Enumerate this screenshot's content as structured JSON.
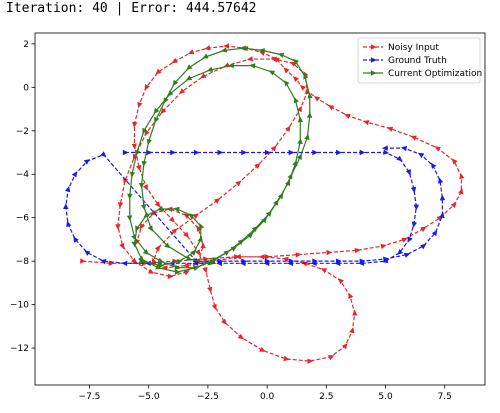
{
  "status": {
    "iteration_label": "Iteration:",
    "iteration": "40",
    "separator": "|",
    "error_label": "Error:",
    "error": "444.57642"
  },
  "chart_data": {
    "type": "line",
    "title": "",
    "xlabel": "",
    "ylabel": "",
    "xlim": [
      -9.8,
      9.2
    ],
    "ylim": [
      -13.7,
      2.5
    ],
    "xticks": [
      -7.5,
      -5.0,
      -2.5,
      0.0,
      2.5,
      5.0,
      7.5
    ],
    "xtick_labels": [
      "−7.5",
      "−5.0",
      "−2.5",
      "0.0",
      "2.5",
      "5.0",
      "7.5"
    ],
    "yticks": [
      2,
      0,
      -2,
      -4,
      -6,
      -8,
      -10,
      -12
    ],
    "ytick_labels": [
      "2",
      "0",
      "−2",
      "−4",
      "−6",
      "−8",
      "−10",
      "−12"
    ],
    "grid": false,
    "legend_position": "top-right",
    "series": [
      {
        "name": "Noisy Input",
        "color": "#e8262a",
        "marker": "triangle-right",
        "linestyle": "dashed",
        "points": [
          [
            -7.8,
            -8.0
          ],
          [
            -6.6,
            -8.1
          ],
          [
            -5.2,
            -8.1
          ],
          [
            -3.9,
            -8.0
          ],
          [
            -2.6,
            -7.9
          ],
          [
            -1.3,
            -7.8
          ],
          [
            0.0,
            -7.8
          ],
          [
            1.3,
            -7.7
          ],
          [
            2.6,
            -7.6
          ],
          [
            3.8,
            -7.5
          ],
          [
            4.9,
            -7.3
          ],
          [
            5.8,
            -7.0
          ],
          [
            6.6,
            -6.5
          ],
          [
            7.3,
            -6.0
          ],
          [
            7.9,
            -5.4
          ],
          [
            8.2,
            -4.8
          ],
          [
            8.2,
            -4.1
          ],
          [
            7.9,
            -3.4
          ],
          [
            7.2,
            -2.8
          ],
          [
            6.2,
            -2.3
          ],
          [
            5.2,
            -1.9
          ],
          [
            4.2,
            -1.6
          ],
          [
            3.4,
            -1.3
          ],
          [
            2.7,
            -0.9
          ],
          [
            2.1,
            -0.5
          ],
          [
            1.5,
            0.0
          ],
          [
            1.2,
            0.4
          ],
          [
            0.8,
            0.8
          ],
          [
            0.4,
            1.3
          ],
          [
            -0.2,
            1.6
          ],
          [
            -0.9,
            1.8
          ],
          [
            -1.7,
            1.9
          ],
          [
            -2.5,
            1.8
          ],
          [
            -3.2,
            1.6
          ],
          [
            -3.9,
            1.2
          ],
          [
            -4.6,
            0.7
          ],
          [
            -5.1,
            0.0
          ],
          [
            -5.4,
            -0.8
          ],
          [
            -5.6,
            -1.7
          ],
          [
            -5.6,
            -2.7
          ],
          [
            -5.4,
            -3.7
          ],
          [
            -5.1,
            -4.6
          ],
          [
            -4.6,
            -5.4
          ],
          [
            -4.0,
            -6.1
          ],
          [
            -3.4,
            -6.8
          ],
          [
            -2.9,
            -7.6
          ],
          [
            -2.6,
            -8.4
          ],
          [
            -2.4,
            -9.3
          ],
          [
            -2.2,
            -10.1
          ],
          [
            -1.8,
            -10.8
          ],
          [
            -1.1,
            -11.5
          ],
          [
            -0.2,
            -12.1
          ],
          [
            0.8,
            -12.5
          ],
          [
            1.8,
            -12.6
          ],
          [
            2.7,
            -12.4
          ],
          [
            3.3,
            -11.9
          ],
          [
            3.6,
            -11.2
          ],
          [
            3.7,
            -10.4
          ],
          [
            3.5,
            -9.6
          ],
          [
            3.1,
            -8.9
          ],
          [
            2.4,
            -8.4
          ],
          [
            1.6,
            -8.1
          ],
          [
            0.8,
            -7.9
          ],
          [
            -0.2,
            -7.8
          ],
          [
            -1.2,
            -7.8
          ],
          [
            -2.3,
            -8.0
          ],
          [
            -3.4,
            -8.2
          ],
          [
            -4.3,
            -8.3
          ],
          [
            -4.8,
            -8.0
          ],
          [
            -4.6,
            -7.4
          ],
          [
            -3.9,
            -6.6
          ],
          [
            -3.0,
            -5.9
          ],
          [
            -2.1,
            -5.2
          ],
          [
            -1.2,
            -4.4
          ],
          [
            -0.4,
            -3.6
          ],
          [
            0.3,
            -2.8
          ],
          [
            0.9,
            -1.9
          ],
          [
            1.4,
            -1.0
          ],
          [
            1.7,
            -0.2
          ],
          [
            1.6,
            0.6
          ],
          [
            1.1,
            1.1
          ],
          [
            0.3,
            1.3
          ],
          [
            -0.7,
            1.3
          ],
          [
            -1.7,
            1.0
          ],
          [
            -2.7,
            0.5
          ],
          [
            -3.6,
            -0.2
          ],
          [
            -4.4,
            -1.1
          ],
          [
            -5.1,
            -2.1
          ],
          [
            -5.6,
            -3.2
          ],
          [
            -6.0,
            -4.3
          ],
          [
            -6.2,
            -5.4
          ],
          [
            -6.3,
            -6.4
          ],
          [
            -6.1,
            -7.3
          ],
          [
            -5.6,
            -8.0
          ],
          [
            -4.9,
            -8.5
          ],
          [
            -4.1,
            -8.7
          ],
          [
            -3.4,
            -8.5
          ],
          [
            -2.9,
            -8.0
          ],
          [
            -2.7,
            -7.3
          ],
          [
            -2.9,
            -6.5
          ],
          [
            -3.4,
            -5.9
          ],
          [
            -4.1,
            -5.6
          ],
          [
            -4.8,
            -5.8
          ],
          [
            -5.3,
            -6.4
          ],
          [
            -5.5,
            -7.1
          ]
        ]
      },
      {
        "name": "Ground Truth",
        "color": "#1a1aee",
        "marker": "triangle-right",
        "linestyle": "dashed",
        "points": [
          [
            -6.0,
            -3.0
          ],
          [
            -5.0,
            -3.0
          ],
          [
            -4.0,
            -3.0
          ],
          [
            -3.0,
            -3.0
          ],
          [
            -2.0,
            -3.0
          ],
          [
            -1.0,
            -3.0
          ],
          [
            0.0,
            -3.0
          ],
          [
            1.0,
            -3.0
          ],
          [
            2.0,
            -3.0
          ],
          [
            3.0,
            -3.0
          ],
          [
            4.0,
            -3.0
          ],
          [
            5.0,
            -3.0
          ],
          [
            5.6,
            -3.3
          ],
          [
            6.0,
            -3.9
          ],
          [
            6.2,
            -4.7
          ],
          [
            6.3,
            -5.5
          ],
          [
            6.2,
            -6.3
          ],
          [
            6.0,
            -7.0
          ],
          [
            5.6,
            -7.6
          ],
          [
            5.0,
            -8.0
          ],
          [
            4.0,
            -8.1
          ],
          [
            3.0,
            -8.1
          ],
          [
            2.0,
            -8.1
          ],
          [
            1.0,
            -8.1
          ],
          [
            0.0,
            -8.1
          ],
          [
            -1.0,
            -8.1
          ],
          [
            -2.0,
            -8.1
          ],
          [
            -3.0,
            -8.1
          ],
          [
            -4.0,
            -8.1
          ],
          [
            -5.0,
            -8.1
          ],
          [
            -6.0,
            -8.1
          ],
          [
            -6.9,
            -8.0
          ],
          [
            -7.6,
            -7.6
          ],
          [
            -8.1,
            -7.0
          ],
          [
            -8.4,
            -6.3
          ],
          [
            -8.5,
            -5.5
          ],
          [
            -8.4,
            -4.7
          ],
          [
            -8.1,
            -4.0
          ],
          [
            -7.6,
            -3.4
          ],
          [
            -6.9,
            -3.1
          ],
          [
            -3.0,
            -8.0
          ],
          [
            -2.0,
            -8.0
          ],
          [
            -1.0,
            -8.0
          ],
          [
            0.0,
            -8.0
          ],
          [
            1.0,
            -8.0
          ],
          [
            2.0,
            -8.0
          ],
          [
            3.0,
            -8.0
          ],
          [
            4.0,
            -8.0
          ],
          [
            5.0,
            -7.9
          ],
          [
            5.9,
            -7.7
          ],
          [
            6.6,
            -7.3
          ],
          [
            7.1,
            -6.7
          ],
          [
            7.4,
            -5.9
          ],
          [
            7.4,
            -5.1
          ],
          [
            7.3,
            -4.3
          ],
          [
            7.0,
            -3.6
          ],
          [
            6.5,
            -3.1
          ],
          [
            5.8,
            -2.8
          ],
          [
            5.0,
            -2.8
          ]
        ]
      },
      {
        "name": "Current Optimization",
        "color": "#2e7d1e",
        "marker": "triangle-right",
        "linestyle": "solid",
        "points": [
          [
            -5.3,
            -8.0
          ],
          [
            -4.5,
            -8.2
          ],
          [
            -3.7,
            -8.0
          ],
          [
            -3.1,
            -7.6
          ],
          [
            -2.8,
            -7.0
          ],
          [
            -2.8,
            -6.4
          ],
          [
            -3.2,
            -5.9
          ],
          [
            -3.8,
            -5.6
          ],
          [
            -4.5,
            -5.6
          ],
          [
            -5.1,
            -5.9
          ],
          [
            -5.5,
            -6.5
          ],
          [
            -5.6,
            -7.2
          ],
          [
            -5.3,
            -7.9
          ],
          [
            -4.6,
            -8.3
          ],
          [
            -3.8,
            -8.5
          ],
          [
            -3.0,
            -8.3
          ],
          [
            -2.2,
            -7.9
          ],
          [
            -1.4,
            -7.4
          ],
          [
            -0.7,
            -6.8
          ],
          [
            -0.1,
            -6.1
          ],
          [
            0.4,
            -5.3
          ],
          [
            0.9,
            -4.4
          ],
          [
            1.2,
            -3.5
          ],
          [
            1.4,
            -2.5
          ],
          [
            1.4,
            -1.5
          ],
          [
            1.2,
            -0.6
          ],
          [
            0.8,
            0.2
          ],
          [
            0.2,
            0.7
          ],
          [
            -0.6,
            1.0
          ],
          [
            -1.5,
            1.0
          ],
          [
            -2.4,
            0.8
          ],
          [
            -3.3,
            0.4
          ],
          [
            -4.1,
            -0.3
          ],
          [
            -4.7,
            -1.1
          ],
          [
            -5.2,
            -2.0
          ],
          [
            -5.5,
            -3.0
          ],
          [
            -5.7,
            -4.0
          ],
          [
            -5.8,
            -5.0
          ],
          [
            -5.8,
            -6.0
          ],
          [
            -5.6,
            -6.9
          ],
          [
            -5.1,
            -7.6
          ],
          [
            -4.5,
            -8.0
          ],
          [
            -3.8,
            -8.3
          ],
          [
            -3.0,
            -8.3
          ],
          [
            -2.3,
            -8.0
          ],
          [
            -1.7,
            -7.6
          ],
          [
            -1.1,
            -7.1
          ],
          [
            -0.5,
            -6.5
          ],
          [
            0.1,
            -5.8
          ],
          [
            0.6,
            -5.0
          ],
          [
            1.0,
            -4.1
          ],
          [
            1.4,
            -3.2
          ],
          [
            1.7,
            -2.3
          ],
          [
            1.8,
            -1.3
          ],
          [
            1.8,
            -0.4
          ],
          [
            1.6,
            0.5
          ],
          [
            1.2,
            1.2
          ],
          [
            0.6,
            1.5
          ],
          [
            -0.2,
            1.7
          ],
          [
            -1.0,
            1.8
          ],
          [
            -1.8,
            1.7
          ],
          [
            -2.6,
            1.4
          ],
          [
            -3.3,
            0.9
          ],
          [
            -3.9,
            0.2
          ],
          [
            -4.3,
            -0.6
          ],
          [
            -4.7,
            -1.5
          ],
          [
            -5.0,
            -2.5
          ],
          [
            -5.2,
            -3.5
          ],
          [
            -5.3,
            -4.5
          ],
          [
            -5.2,
            -5.5
          ],
          [
            -4.9,
            -6.5
          ],
          [
            -4.2,
            -7.3
          ],
          [
            -3.3,
            -7.9
          ],
          [
            -2.4,
            -8.1
          ]
        ]
      }
    ]
  }
}
